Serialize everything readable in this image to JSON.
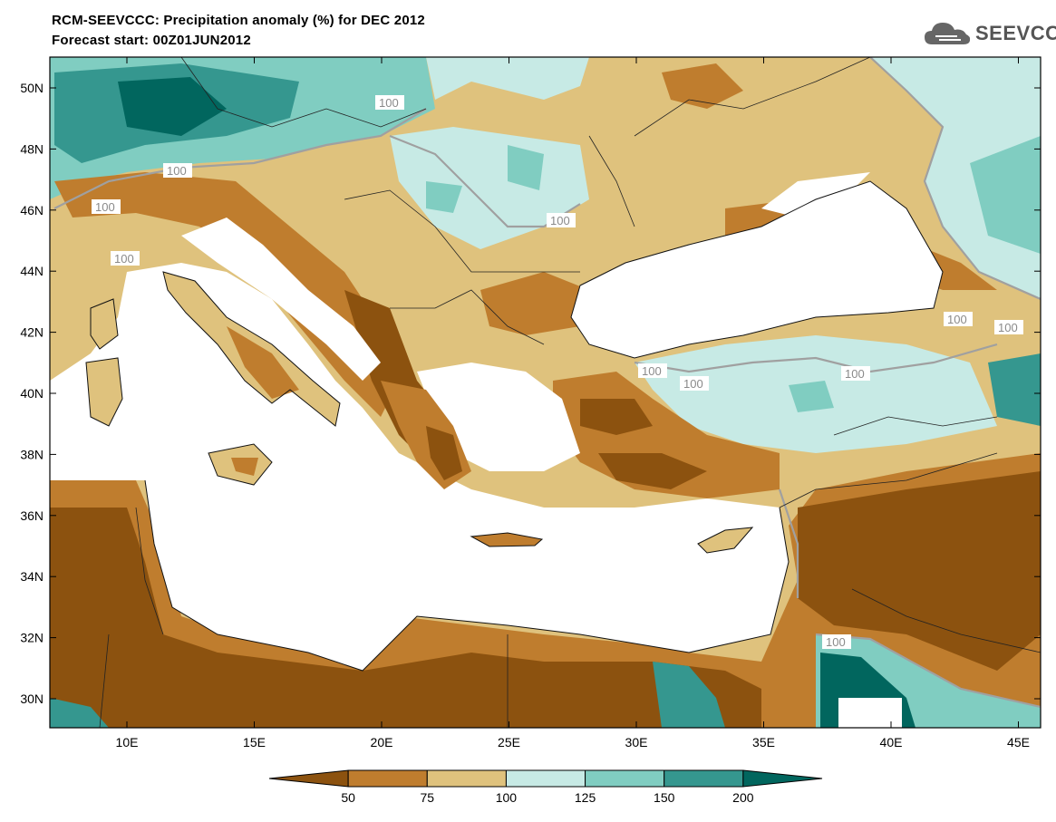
{
  "title_line1": "RCM-SEEVCCC: Precipitation anomaly (%) for DEC 2012",
  "title_line2": "Forecast start: 00Z01JUN2012",
  "logo_text": "SEEVCCC",
  "lat_labels": [
    "50N",
    "48N",
    "46N",
    "44N",
    "42N",
    "40N",
    "38N",
    "36N",
    "34N",
    "32N",
    "30N"
  ],
  "lon_labels": [
    "10E",
    "15E",
    "20E",
    "25E",
    "30E",
    "35E",
    "40E",
    "45E"
  ],
  "contour_label": "100",
  "colorbar": {
    "ticks": [
      "50",
      "75",
      "100",
      "125",
      "150",
      "200"
    ],
    "colors": [
      "#8c520f",
      "#bf7d2e",
      "#dfc27d",
      "#c7eae5",
      "#80cdc1",
      "#35978f",
      "#01665e"
    ]
  },
  "palette": {
    "very_dry": "#8c520f",
    "dry": "#bf7d2e",
    "slightly_dry": "#dfc27d",
    "slightly_wet": "#c7eae5",
    "wet": "#80cdc1",
    "very_wet": "#35978f",
    "extreme_wet": "#01665e"
  }
}
